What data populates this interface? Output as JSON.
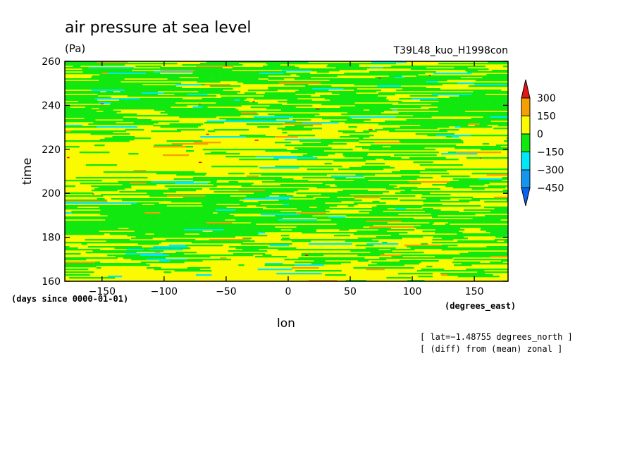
{
  "chart_data": {
    "type": "heatmap",
    "title": "air pressure at sea level",
    "units": "(Pa)",
    "run_name": "T39L48_kuo_H1998con",
    "xlabel": "lon",
    "x_units": "(degrees_east)",
    "ylabel": "time",
    "y_units": "(days since 0000-01-01)",
    "xlim": [
      -180,
      177.1875
    ],
    "ylim": [
      160,
      260
    ],
    "x_ticks": [
      -150,
      -100,
      -50,
      0,
      50,
      100,
      150
    ],
    "x_tick_labels": [
      "−150",
      "−100",
      "−50",
      "0",
      "50",
      "100",
      "150"
    ],
    "y_ticks": [
      160,
      180,
      200,
      220,
      240,
      260
    ],
    "y_tick_labels": [
      "160",
      "180",
      "200",
      "220",
      "240",
      "260"
    ],
    "notes": [
      "[ lat=−1.48755 degrees_north ]",
      "[ (diff) from (mean) zonal ]"
    ],
    "colorbar": {
      "levels": [
        -450,
        -300,
        -150,
        0,
        150,
        300
      ],
      "level_labels": [
        "−450",
        "−300",
        "−150",
        "0",
        "150",
        "300"
      ],
      "colors": [
        "#0a64f0",
        "#1496f0",
        "#00e8f8",
        "#10e810",
        "#fafa00",
        "#f5a000",
        "#e61414"
      ]
    },
    "field_description": "Hovmoller diagram; values mostly between -150 and 150 Pa with predominantly green (-150..0) and yellow (0..150) horizontal streaks, sparse cyan (-300..-150) and orange (150..300) patches."
  }
}
